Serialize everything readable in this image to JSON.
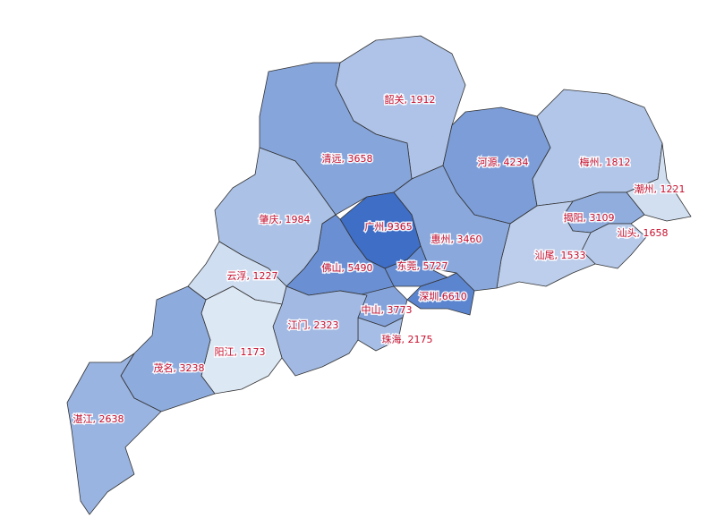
{
  "chart_data": {
    "type": "map",
    "values": [
      1912,
      3658,
      4234,
      1812,
      1221,
      3109,
      1658,
      1533,
      3460,
      9365,
      5727,
      6610,
      5490,
      3773,
      2175,
      2323,
      1984,
      1227,
      1173,
      3238,
      2638
    ],
    "value_labels": [
      "韶关, 1912",
      "清远, 3658",
      "河源, 4234",
      "梅州, 1812",
      "潮州, 1221",
      "揭阳, 3109",
      "汕头, 1658",
      "汕尾, 1533",
      "惠州, 3460",
      "广州,9365",
      "东莞, 5727",
      "深圳,6610",
      "佛山, 5490",
      "中山, 3773",
      "珠海, 2175",
      "江门, 2323",
      "肇庆, 1984",
      "云浮, 1227",
      "阳江, 1173",
      "茂名, 3238",
      "湛江, 2638"
    ],
    "color_range": [
      "#dde8f5",
      "#3f6ec6"
    ]
  }
}
